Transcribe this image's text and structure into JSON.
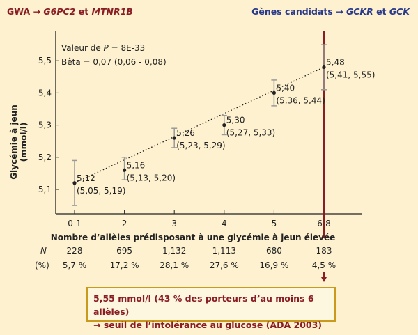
{
  "header": {
    "left_prefix": "GWA →",
    "left_genes": "G6PC2",
    "left_and": "et",
    "left_gene2": "MTNR1B",
    "right_prefix": "Gènes candidats →",
    "right_gene1": "GCKR",
    "right_and": "et",
    "right_gene2": "GCK"
  },
  "stats": {
    "pvalue_prefix": "Valeur de",
    "pvalue_p": "P",
    "pvalue_value": "= 8E-33",
    "beta": "Bêta = 0,07 (0,06 - 0,08)"
  },
  "table": {
    "n_label": "N",
    "pct_label": "(%)",
    "n_values": [
      "228",
      "695",
      "1,132",
      "1,113",
      "680",
      "183"
    ],
    "pct_values": [
      "5,7 %",
      "17,2 %",
      "28,1 %",
      "27,6 %",
      "16,9 %",
      "4,5 %"
    ]
  },
  "note": {
    "line1": "5,55 mmol/l (43 % des porteurs d’au moins 6 allèles)",
    "line2": "→ seuil de l’intolérance au glucose (ADA 2003)"
  },
  "colors": {
    "background": "#fdf1cf",
    "dark_red": "#8a1c24",
    "blue": "#2a3a8a",
    "error_bar": "#9a9a9a",
    "box_border": "#c99a1c"
  },
  "chart_data": {
    "type": "scatter",
    "xlabel": "Nombre d’allèles prédisposant à une glycémie à jeun élevée",
    "ylabel": "Glycémie à jeun (mmol/l)",
    "categories": [
      "0-1",
      "2",
      "3",
      "4",
      "5",
      "6-8"
    ],
    "ylim": [
      5.07,
      5.56
    ],
    "yticks": [
      5.1,
      5.2,
      5.3,
      5.4,
      5.5
    ],
    "ytick_labels": [
      "5,1",
      "5,2",
      "5,3",
      "5,4",
      "5,5"
    ],
    "values": [
      5.12,
      5.16,
      5.26,
      5.3,
      5.4,
      5.48
    ],
    "ci_low": [
      5.05,
      5.13,
      5.23,
      5.27,
      5.36,
      5.41
    ],
    "ci_high": [
      5.19,
      5.2,
      5.29,
      5.33,
      5.44,
      5.55
    ],
    "point_labels": [
      "5,12",
      "5,16",
      "5,26",
      "5,30",
      "5,40",
      "5,48"
    ],
    "ci_labels": [
      "(5,05, 5,19)",
      "(5,13, 5,20)",
      "(5,23, 5,29)",
      "(5,27, 5,33)",
      "(5,36, 5,44)",
      "(5,41, 5,55)"
    ],
    "trend_line": "dotted",
    "threshold_category": "6-8",
    "grid": false
  }
}
